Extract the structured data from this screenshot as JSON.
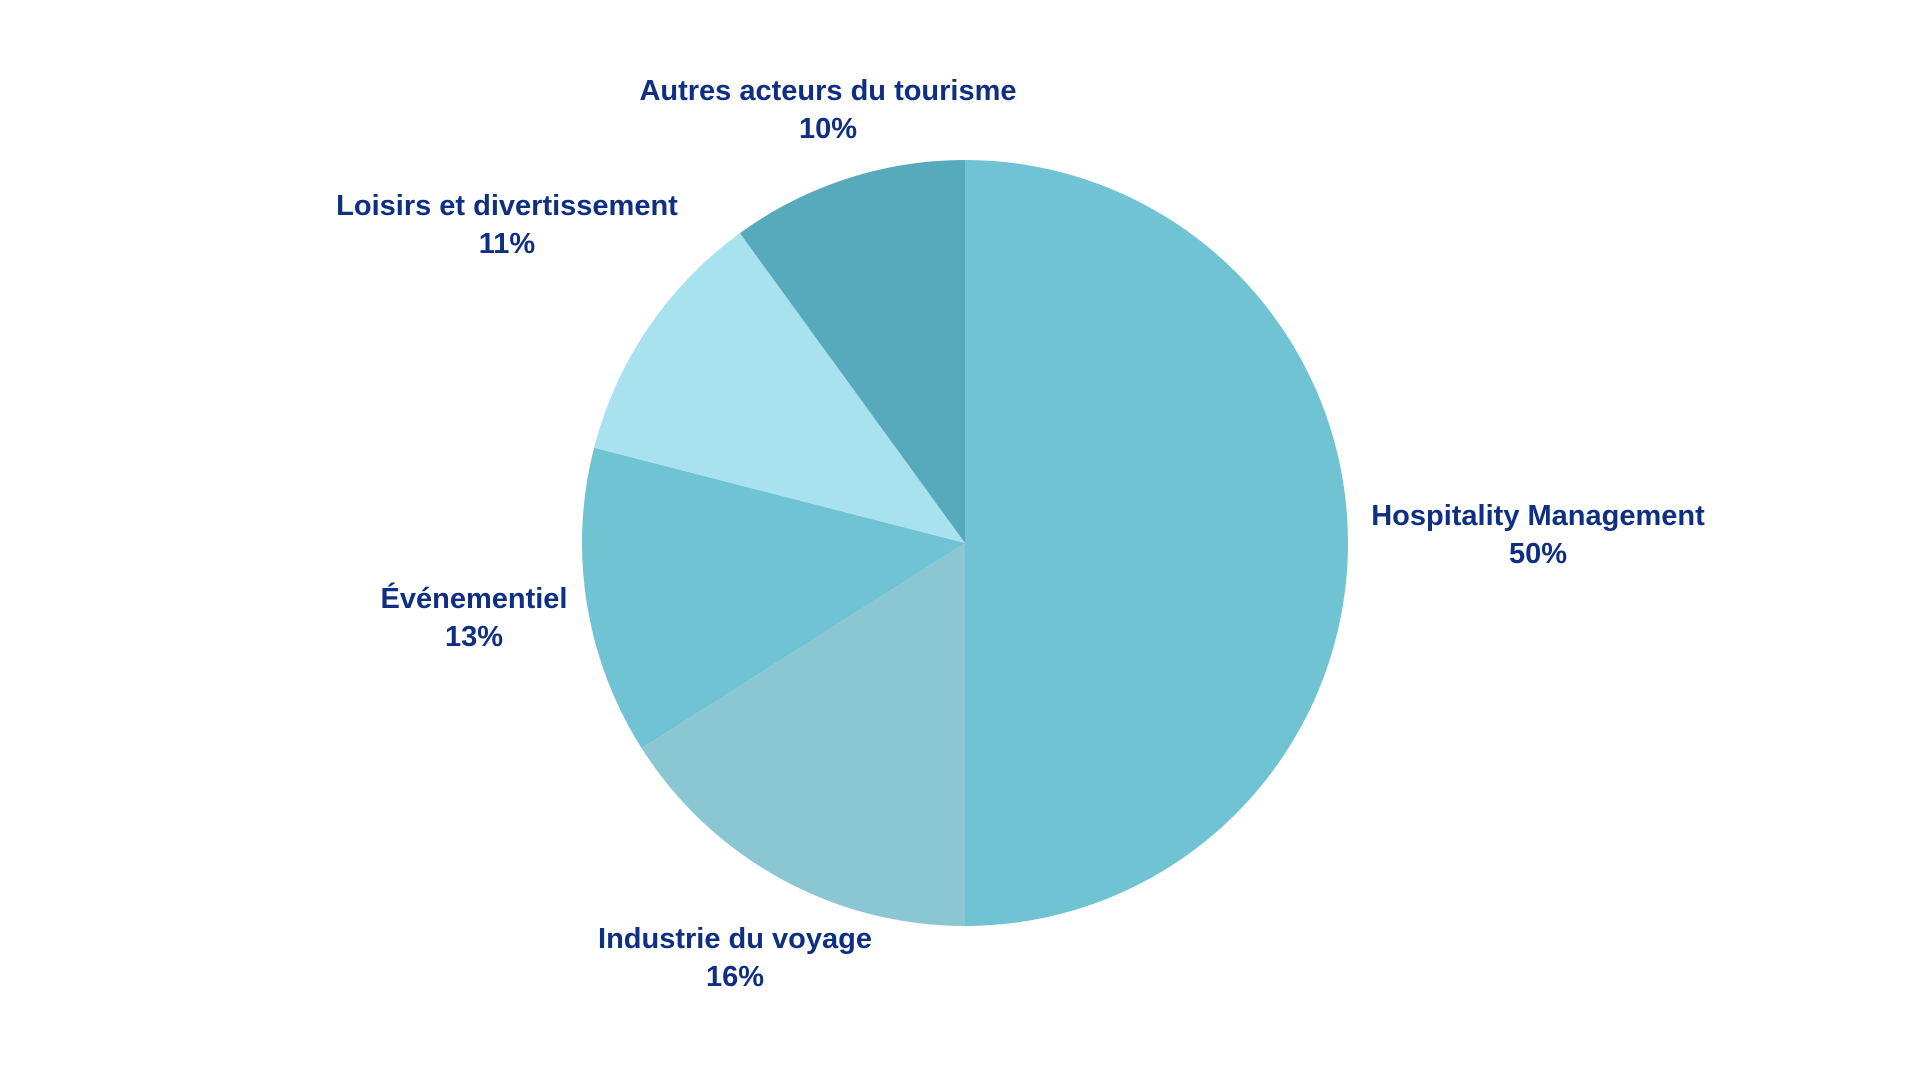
{
  "chart_data": {
    "type": "pie",
    "start_angle_deg": 0,
    "direction": "clockwise",
    "slices": [
      {
        "label": "Hospitality Management",
        "value": 50,
        "value_label": "50%",
        "color": "#6fc3d3"
      },
      {
        "label": "Industrie du voyage",
        "value": 16,
        "value_label": "16%",
        "color": "#8bc7d3"
      },
      {
        "label": "Événementiel",
        "value": 13,
        "value_label": "13%",
        "color": "#6fc3d3"
      },
      {
        "label": "Loisirs et divertissement",
        "value": 11,
        "value_label": "11%",
        "color": "#a9e2ef"
      },
      {
        "label": "Autres acteurs du tourisme",
        "value": 10,
        "value_label": "10%",
        "color": "#56aabb"
      }
    ],
    "label_color": "#0f2f82",
    "legend": "none"
  }
}
